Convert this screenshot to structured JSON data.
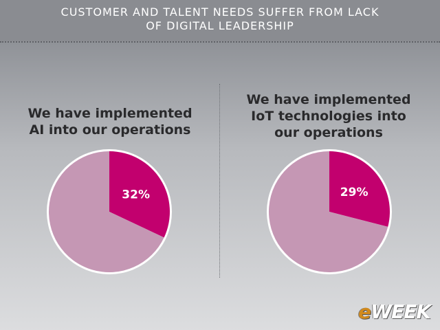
{
  "header": {
    "title_line1": "CUSTOMER AND TALENT NEEDS SUFFER FROM LACK",
    "title_line2": "OF DIGITAL LEADERSHIP"
  },
  "logo": {
    "prefix": "e",
    "rest": "WEEK"
  },
  "colors": {
    "highlight_slice": "#c2006e",
    "rest_slice": "#c597b4",
    "ring": "#ffffff"
  },
  "chart_data": [
    {
      "type": "pie",
      "title_lines": [
        "We have implemented",
        "AI into our operations"
      ],
      "slices": [
        {
          "value": 32,
          "label": "32%"
        },
        {
          "value": 68,
          "label": ""
        }
      ]
    },
    {
      "type": "pie",
      "title_lines": [
        "We have implemented",
        "IoT technologies into",
        "our operations"
      ],
      "slices": [
        {
          "value": 29,
          "label": "29%"
        },
        {
          "value": 71,
          "label": ""
        }
      ]
    }
  ]
}
